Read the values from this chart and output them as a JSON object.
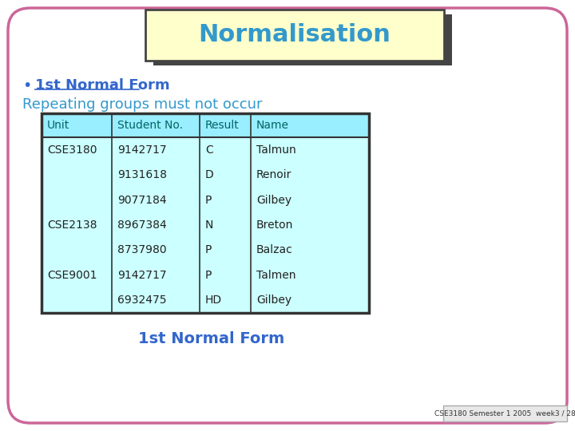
{
  "title": "Normalisation",
  "title_bg": "#ffffcc",
  "title_color": "#3399cc",
  "slide_bg": "#ffffff",
  "border_color": "#cc6699",
  "bullet_text": "1st Normal Form",
  "bullet_color": "#3366cc",
  "subtitle_text": "Repeating groups must not occur",
  "subtitle_color": "#3399cc",
  "table_header": [
    "Unit",
    "Student No.",
    "Result",
    "Name"
  ],
  "table_header_bg": "#99eeff",
  "table_body_bg": "#ccffff",
  "table_border": "#333333",
  "table_text_color": "#006666",
  "table_rows": [
    [
      "CSE3180",
      "9142717",
      "C",
      "Talmun"
    ],
    [
      "",
      "9131618",
      "D",
      "Renoir"
    ],
    [
      "",
      "9077184",
      "P",
      "Gilbey"
    ],
    [
      "CSE2138",
      "8967384",
      "N",
      "Breton"
    ],
    [
      "",
      "8737980",
      "P",
      "Balzac"
    ],
    [
      "CSE9001",
      "9142717",
      "P",
      "Talmen"
    ],
    [
      "",
      "6932475",
      "HD",
      "Gilbey"
    ]
  ],
  "footer_text": "1st Normal Form",
  "footer_color": "#3366cc",
  "footer2_text": "CSE3180 Semester 1 2005  week3 / 28",
  "footer2_color": "#333333",
  "footer2_bg": "#e8e8e8",
  "shadow_color": "#444444"
}
